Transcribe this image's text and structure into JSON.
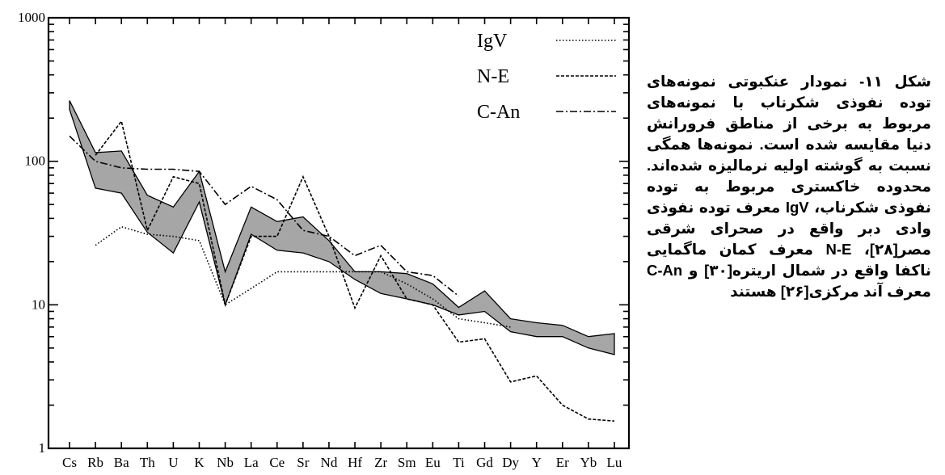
{
  "chart_data": {
    "type": "line",
    "yscale": "log",
    "ylim": [
      1,
      1000
    ],
    "y_ticks": [
      "1",
      "10",
      "100",
      "1000"
    ],
    "categories": [
      "Cs",
      "Rb",
      "Ba",
      "Th",
      "U",
      "K",
      "Nb",
      "La",
      "Ce",
      "Sr",
      "Nd",
      "Hf",
      "Zr",
      "Sm",
      "Eu",
      "Ti",
      "Gd",
      "Dy",
      "Y",
      "Er",
      "Yb",
      "Lu"
    ],
    "band": {
      "fill": "#a6a6a6",
      "upper": [
        265,
        115,
        118,
        58,
        48,
        85,
        17,
        48,
        38,
        41,
        28,
        17,
        17,
        16.5,
        14,
        9.6,
        12.5,
        8,
        7.5,
        7.2,
        6,
        6.3
      ],
      "lower": [
        230,
        65,
        60,
        32,
        23,
        52,
        10,
        31,
        24,
        23,
        20,
        15,
        12,
        11,
        10,
        8.5,
        9,
        6.5,
        6,
        6,
        5,
        4.5
      ]
    },
    "series": [
      {
        "name": "IgV",
        "style": "dotted",
        "values": [
          null,
          26,
          35,
          31,
          30,
          28,
          10,
          13,
          17,
          17,
          17,
          17,
          17,
          14,
          11,
          8,
          7.5,
          7,
          null,
          null,
          null,
          null
        ]
      },
      {
        "name": "N-E",
        "style": "dashed",
        "values": [
          null,
          110,
          190,
          33,
          78,
          70,
          10,
          30,
          30,
          78,
          30,
          9.5,
          22,
          11,
          10,
          5.5,
          5.8,
          2.9,
          3.2,
          2,
          1.6,
          1.55
        ]
      },
      {
        "name": "C-An",
        "style": "dashdot",
        "values": [
          150,
          100,
          90,
          88,
          88,
          85,
          50,
          67,
          54,
          33,
          30,
          22,
          26,
          17,
          16,
          11.5,
          null,
          null,
          null,
          null,
          null,
          null
        ]
      }
    ]
  },
  "caption": {
    "text": "شکل ۱۱- نمودار عنکبوتی نمونه‌های توده نفوذی شکرناب با نمونه‌های مربوط به برخی از مناطق فرورانش دنیا مقایسه شده است. نمونه‌ها همگی نسبت به گوشته اولیه نرمالیزه شده‌اند. محدوده خاکستری مربوط به توده نفوذی شکرناب، IgV معرف توده نفوذی وادی دبر واقع در صحرای شرقی مصر[۲۸]، N-E معرف کمان ماگمایی ناکفا واقع در شمال اریتره[۳۰] و C-An معرف آند مرکزی[۲۶] هستند"
  }
}
